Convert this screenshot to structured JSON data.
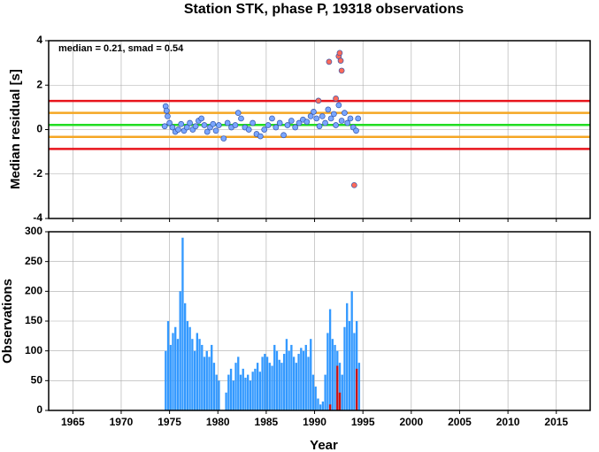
{
  "chart_data": [
    {
      "type": "scatter",
      "title": "Station STK, phase P, 19318 observations",
      "y_label": "Median residual [s]",
      "annotation": "median = 0.21, smad = 0.54",
      "xlim": [
        1962.5,
        2018.5
      ],
      "xticks": [
        1965,
        1970,
        1975,
        1980,
        1985,
        1990,
        1995,
        2000,
        2005,
        2010,
        2015
      ],
      "ylim": [
        -4,
        4
      ],
      "yticks": [
        -4,
        -2,
        0,
        2,
        4
      ],
      "grid": true,
      "reference_lines": [
        {
          "value": 1.29,
          "color": "#e8141c"
        },
        {
          "value": 0.75,
          "color": "#f5a623"
        },
        {
          "value": 0.21,
          "color": "#22dd22"
        },
        {
          "value": -0.33,
          "color": "#f5a623"
        },
        {
          "value": -0.87,
          "color": "#e8141c"
        }
      ],
      "series": [
        {
          "color": "#7aa6ff",
          "x": [
            1974.5,
            1974.6,
            1974.7,
            1974.8,
            1975.0,
            1975.3,
            1975.6,
            1975.9,
            1976.2,
            1976.5,
            1976.8,
            1977.1,
            1977.4,
            1977.7,
            1978.0,
            1978.3,
            1978.6,
            1978.9,
            1979.2,
            1979.5,
            1979.8,
            1980.1,
            1980.6,
            1981.0,
            1981.4,
            1981.8,
            1982.1,
            1982.4,
            1982.8,
            1983.2,
            1983.6,
            1984.0,
            1984.4,
            1984.8,
            1985.2,
            1985.6,
            1986.0,
            1986.4,
            1986.8,
            1987.2,
            1987.6,
            1988.0,
            1988.4,
            1988.8,
            1989.2,
            1989.6,
            1989.9,
            1990.2,
            1990.5,
            1990.8,
            1991.1,
            1991.4,
            1991.7,
            1992.0,
            1992.2,
            1992.5,
            1992.8,
            1993.1,
            1993.4,
            1993.7,
            1994.0,
            1994.3,
            1994.5
          ],
          "values": [
            0.15,
            1.05,
            0.85,
            0.6,
            0.3,
            0.1,
            -0.1,
            0.0,
            0.25,
            -0.05,
            0.1,
            0.3,
            0.0,
            0.15,
            0.4,
            0.5,
            0.2,
            -0.1,
            0.1,
            0.25,
            -0.05,
            0.2,
            -0.4,
            0.3,
            0.1,
            0.2,
            0.75,
            0.5,
            0.1,
            0.0,
            0.3,
            -0.2,
            -0.3,
            0.0,
            0.2,
            0.5,
            0.1,
            0.3,
            -0.25,
            0.2,
            0.4,
            0.1,
            0.3,
            0.45,
            0.35,
            0.6,
            0.8,
            0.5,
            0.15,
            0.6,
            0.3,
            0.9,
            0.5,
            0.7,
            0.2,
            1.1,
            0.4,
            0.75,
            0.3,
            0.5,
            0.1,
            -0.05,
            0.5
          ]
        },
        {
          "color": "#ff6a5a",
          "x": [
            1990.4,
            1991.5,
            1992.2,
            1992.5,
            1992.6,
            1992.7,
            1992.8,
            1994.1
          ],
          "values": [
            1.3,
            3.05,
            1.4,
            3.3,
            3.45,
            3.1,
            2.65,
            -2.5
          ]
        }
      ]
    },
    {
      "type": "histogram",
      "y_label": "Observations",
      "x_label": "Year",
      "xlim": [
        1962.5,
        2018.5
      ],
      "xticks": [
        1965,
        1970,
        1975,
        1980,
        1985,
        1990,
        1995,
        2000,
        2005,
        2010,
        2015
      ],
      "ylim": [
        0,
        300
      ],
      "yticks": [
        0,
        50,
        100,
        150,
        200,
        250,
        300
      ],
      "grid": true,
      "bins": [
        1974.5,
        1974.75,
        1975,
        1975.25,
        1975.5,
        1975.75,
        1976,
        1976.25,
        1976.5,
        1976.75,
        1977,
        1977.25,
        1977.5,
        1977.75,
        1978,
        1978.25,
        1978.5,
        1978.75,
        1979,
        1979.25,
        1979.5,
        1979.75,
        1980,
        1980.25,
        1980.5,
        1980.75,
        1981,
        1981.25,
        1981.5,
        1981.75,
        1982,
        1982.25,
        1982.5,
        1982.75,
        1983,
        1983.25,
        1983.5,
        1983.75,
        1984,
        1984.25,
        1984.5,
        1984.75,
        1985,
        1985.25,
        1985.5,
        1985.75,
        1986,
        1986.25,
        1986.5,
        1986.75,
        1987,
        1987.25,
        1987.5,
        1987.75,
        1988,
        1988.25,
        1988.5,
        1988.75,
        1989,
        1989.25,
        1989.5,
        1989.75,
        1990,
        1990.25,
        1990.5,
        1990.75,
        1991,
        1991.25,
        1991.5,
        1991.75,
        1992,
        1992.25,
        1992.5,
        1992.75,
        1993,
        1993.25,
        1993.5,
        1993.75,
        1994,
        1994.25,
        1994.5,
        1994.75
      ],
      "series": [
        {
          "color": "#3399ff",
          "values": [
            100,
            150,
            110,
            130,
            140,
            120,
            200,
            290,
            180,
            150,
            140,
            120,
            100,
            130,
            120,
            110,
            90,
            100,
            90,
            110,
            80,
            60,
            50,
            0,
            0,
            30,
            60,
            70,
            50,
            80,
            90,
            60,
            70,
            55,
            60,
            50,
            65,
            70,
            80,
            65,
            90,
            95,
            90,
            80,
            75,
            110,
            100,
            85,
            80,
            95,
            120,
            100,
            110,
            90,
            80,
            95,
            105,
            100,
            110,
            90,
            120,
            60,
            40,
            20,
            10,
            15,
            60,
            130,
            170,
            120,
            110,
            100,
            80,
            60,
            140,
            180,
            150,
            200,
            130,
            150,
            80
          ]
        },
        {
          "color": "#cc1111",
          "values": [
            0,
            0,
            0,
            0,
            0,
            0,
            0,
            0,
            0,
            0,
            0,
            0,
            0,
            0,
            0,
            0,
            0,
            0,
            0,
            0,
            0,
            0,
            0,
            0,
            0,
            0,
            0,
            0,
            0,
            0,
            0,
            0,
            0,
            0,
            0,
            0,
            0,
            0,
            0,
            0,
            0,
            0,
            0,
            0,
            0,
            0,
            0,
            0,
            0,
            0,
            0,
            0,
            0,
            0,
            0,
            0,
            0,
            0,
            0,
            0,
            0,
            0,
            0,
            0,
            0,
            0,
            0,
            0,
            10,
            0,
            0,
            75,
            30,
            0,
            0,
            0,
            0,
            0,
            0,
            70,
            0
          ]
        }
      ]
    }
  ]
}
